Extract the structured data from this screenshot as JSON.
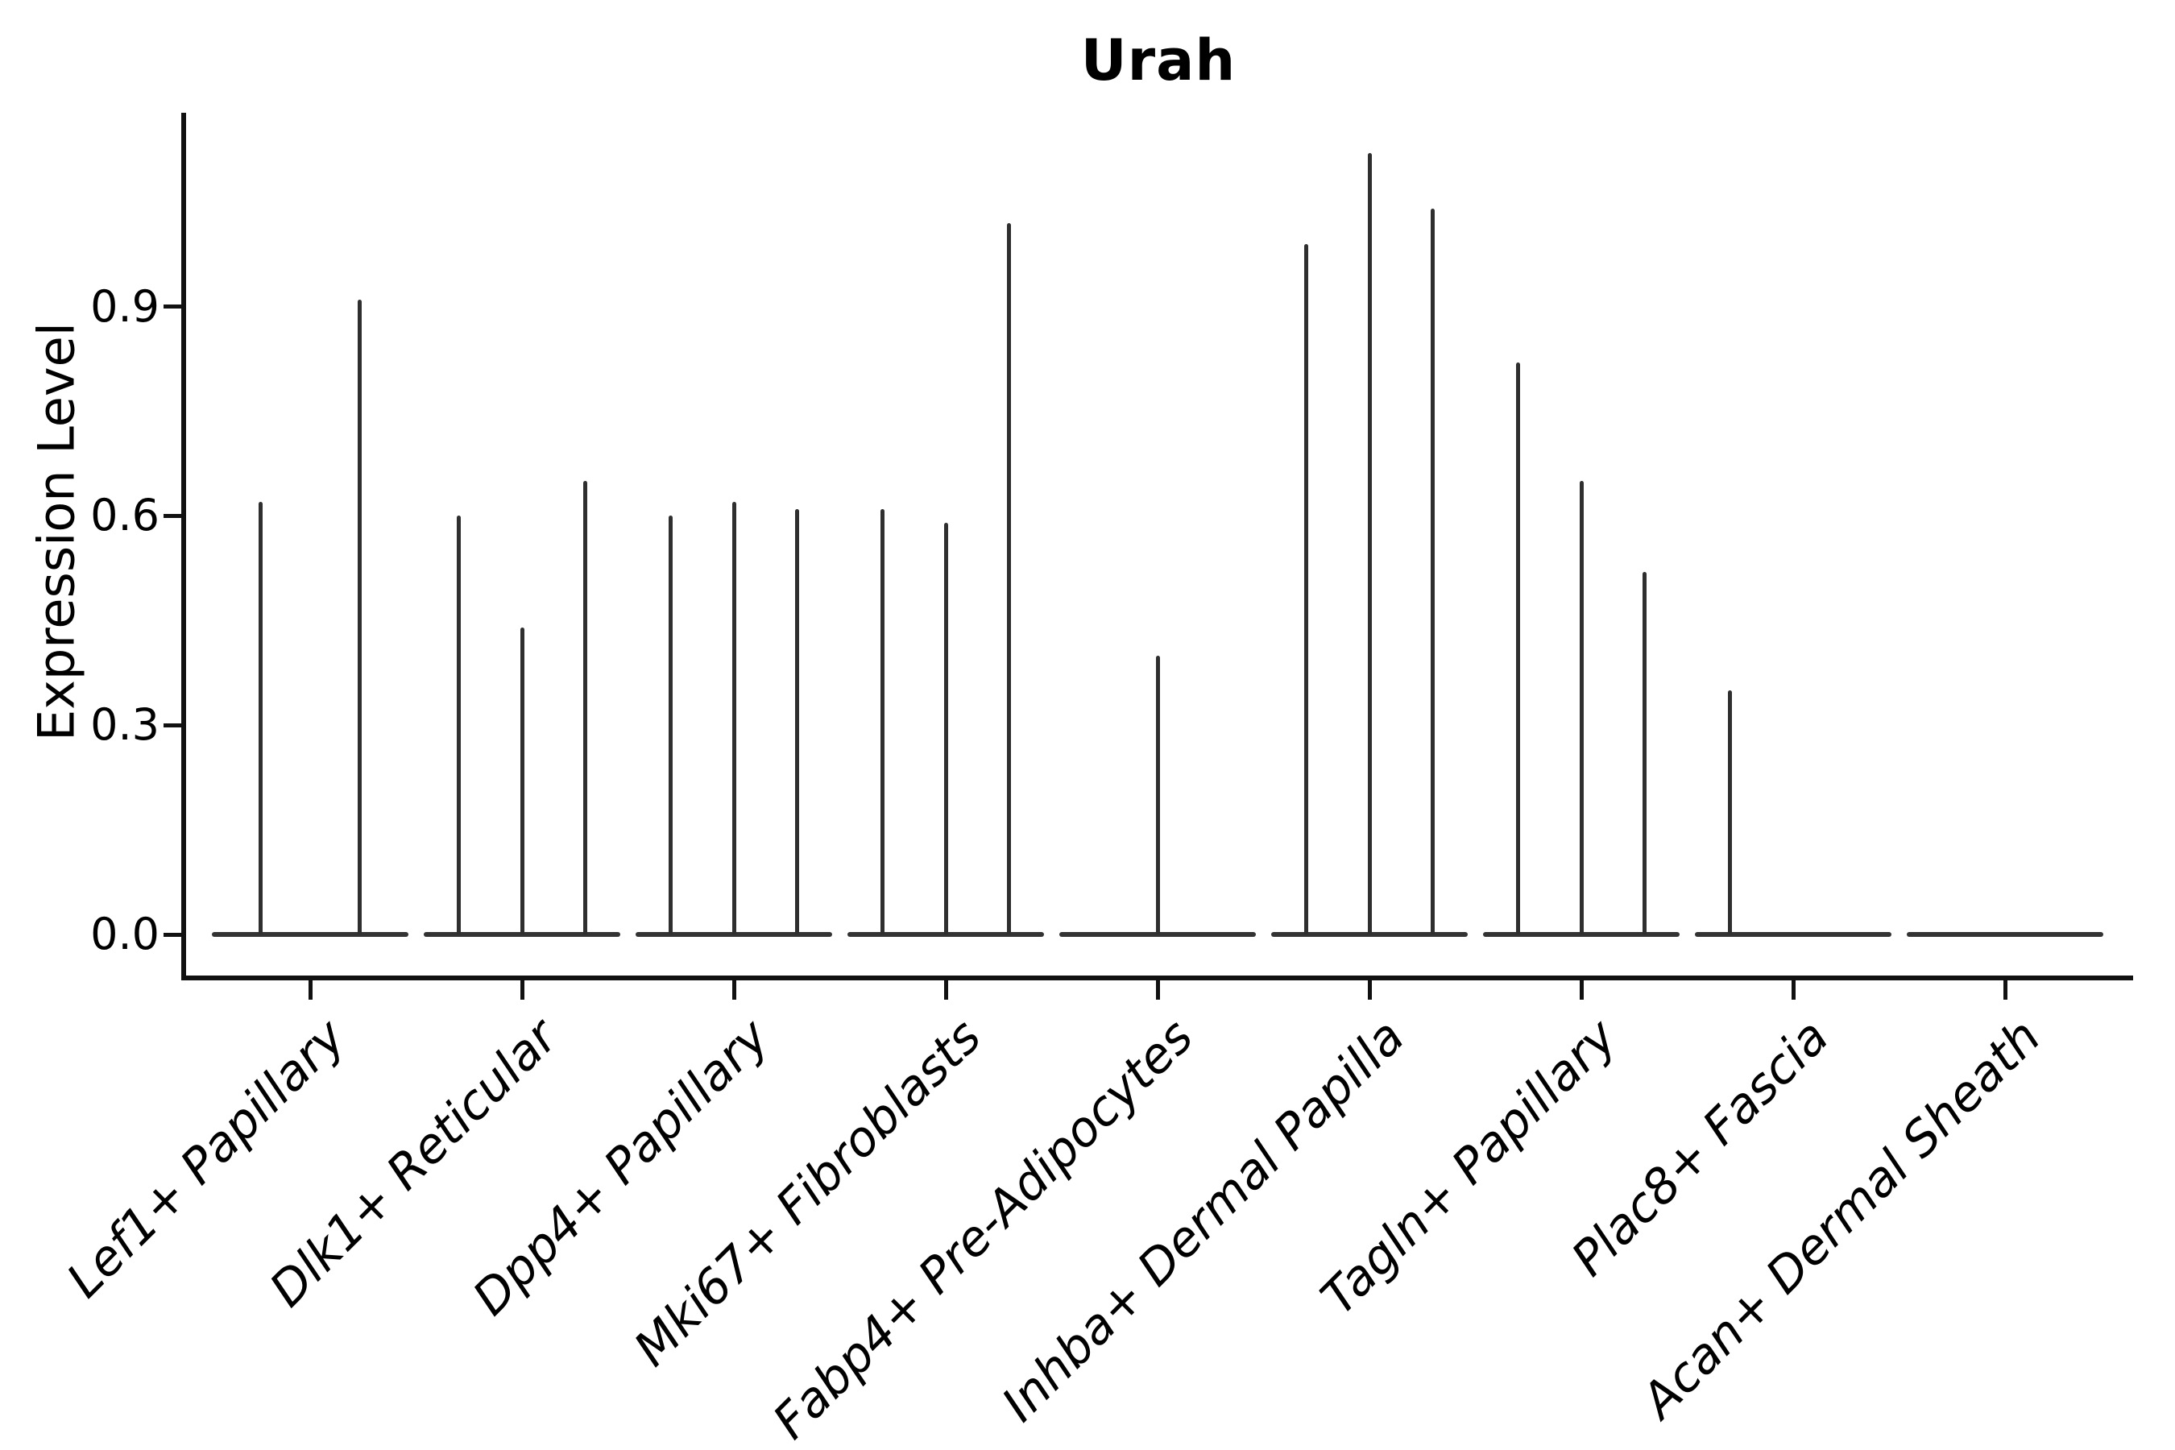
{
  "title": "Urah",
  "y_axis": {
    "label": "Expression Level",
    "tick_labels": [
      "0.0",
      "0.3",
      "0.6",
      "0.9"
    ]
  },
  "chart_data": {
    "type": "violin",
    "title": "Urah",
    "xlabel": "",
    "ylabel": "Expression Level",
    "yticks": [
      0.0,
      0.3,
      0.6,
      0.9
    ],
    "ylim": [
      -0.06,
      1.18
    ],
    "grid": false,
    "legend": "none",
    "categories": [
      "Lef1+ Papillary",
      "Dlk1+ Reticular",
      "Dpp4+ Papillary",
      "Mki67+ Fibroblasts",
      "Fabp4+ Pre-Adipocytes",
      "Inhba+ Dermal Papilla",
      "Tagln+ Papillary",
      "Plac8+ Fascia",
      "Acan+ Dermal Sheath"
    ],
    "groups": [
      {
        "category": "Lef1+ Papillary",
        "violins": [
          {
            "offset": -0.232,
            "peak": 0.62
          },
          {
            "offset": 0.232,
            "peak": 0.91
          }
        ]
      },
      {
        "category": "Dlk1+ Reticular",
        "violins": [
          {
            "offset": -0.3,
            "peak": 0.6
          },
          {
            "offset": 0,
            "peak": 0.44
          },
          {
            "offset": 0.3,
            "peak": 0.65
          }
        ]
      },
      {
        "category": "Dpp4+ Papillary",
        "violins": [
          {
            "offset": -0.3,
            "peak": 0.6
          },
          {
            "offset": 0,
            "peak": 0.62
          },
          {
            "offset": 0.3,
            "peak": 0.61
          }
        ]
      },
      {
        "category": "Mki67+ Fibroblasts",
        "violins": [
          {
            "offset": -0.3,
            "peak": 0.61
          },
          {
            "offset": 0,
            "peak": 0.59
          },
          {
            "offset": 0.3,
            "peak": 1.02
          }
        ]
      },
      {
        "category": "Fabp4+ Pre-Adipocytes",
        "violins": [
          {
            "offset": 0,
            "peak": 0.4
          }
        ]
      },
      {
        "category": "Inhba+ Dermal Papilla",
        "violins": [
          {
            "offset": -0.3,
            "peak": 0.99
          },
          {
            "offset": 0,
            "peak": 1.12
          },
          {
            "offset": 0.3,
            "peak": 1.04
          }
        ]
      },
      {
        "category": "Tagln+ Papillary",
        "violins": [
          {
            "offset": -0.3,
            "peak": 0.82
          },
          {
            "offset": 0,
            "peak": 0.65
          },
          {
            "offset": 0.3,
            "peak": 0.52
          }
        ]
      },
      {
        "category": "Plac8+ Fascia",
        "violins": [
          {
            "offset": -0.3,
            "peak": 0.35
          }
        ]
      },
      {
        "category": "Acan+ Dermal Sheath",
        "violins": []
      }
    ],
    "baseline_half_width_frac": 0.464,
    "colors": {
      "violin": "#2f2f2f",
      "axis": "#111111",
      "text": "#000000",
      "background": "#ffffff"
    }
  }
}
